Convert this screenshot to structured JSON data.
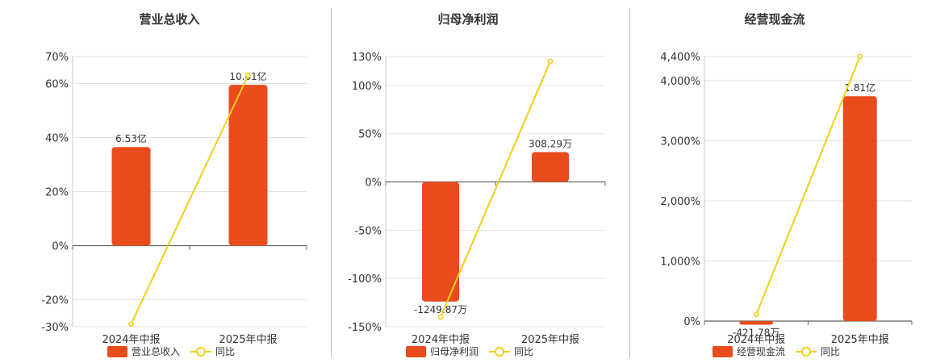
{
  "colors": {
    "bar": "#E84C1C",
    "line": "#F2CE1A",
    "grid": "#e3e3e3",
    "axis": "#666666",
    "text": "#333333"
  },
  "legend": {
    "yoy_label": "同比"
  },
  "chart_data": [
    {
      "type": "bar",
      "title": "营业总收入",
      "categories": [
        "2024年中报",
        "2025年中报"
      ],
      "series": [
        {
          "name": "营业总收入",
          "values": [
            36.5,
            59.5
          ],
          "labels": [
            "6.53亿",
            "10.61亿"
          ]
        },
        {
          "name": "同比",
          "type": "line",
          "values": [
            -29,
            63
          ]
        }
      ],
      "yticks": [
        70,
        60,
        40,
        20,
        0,
        -20,
        -30
      ],
      "yunit": "%",
      "ylim": [
        -30,
        70
      ]
    },
    {
      "type": "bar",
      "title": "归母净利润",
      "categories": [
        "2024年中报",
        "2025年中报"
      ],
      "series": [
        {
          "name": "归母净利润",
          "values": [
            -124,
            31
          ],
          "labels": [
            "-1249.87万",
            "308.29万"
          ]
        },
        {
          "name": "同比",
          "type": "line",
          "values": [
            -140,
            125
          ]
        }
      ],
      "yticks": [
        130,
        100,
        50,
        0,
        -50,
        -100,
        -150
      ],
      "yunit": "%",
      "ylim": [
        -150,
        130
      ]
    },
    {
      "type": "bar",
      "title": "经营现金流",
      "categories": [
        "2024年中报",
        "2025年中报"
      ],
      "series": [
        {
          "name": "经营现金流",
          "values": [
            -60,
            3740
          ],
          "labels": [
            "-421.78万",
            "1.81亿"
          ]
        },
        {
          "name": "同比",
          "type": "line",
          "values": [
            110,
            4400
          ]
        }
      ],
      "yticks": [
        4400,
        4000,
        3000,
        2000,
        1000,
        0
      ],
      "yunit": "%",
      "ylim": [
        0,
        4400
      ]
    }
  ]
}
